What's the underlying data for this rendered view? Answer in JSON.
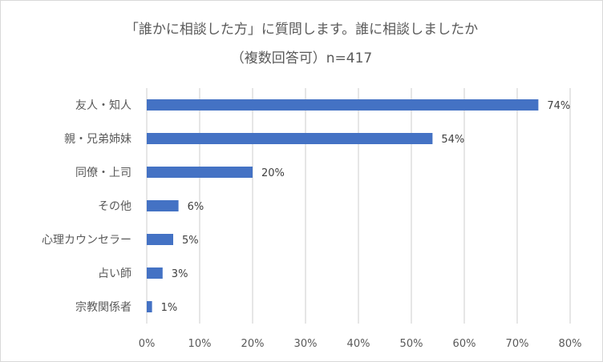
{
  "chart_data": {
    "type": "bar",
    "orientation": "horizontal",
    "title": "「誰かに相談した方」に質問します。誰に相談しましたか",
    "subtitle": "（複数回答可）n=417",
    "categories": [
      "友人・知人",
      "親・兄弟姉妹",
      "同僚・上司",
      "その他",
      "心理カウンセラー",
      "占い師",
      "宗教関係者"
    ],
    "values": [
      74,
      54,
      20,
      6,
      5,
      3,
      1
    ],
    "value_labels": [
      "74%",
      "54%",
      "20%",
      "6%",
      "5%",
      "3%",
      "1%"
    ],
    "x_ticks": [
      "0%",
      "10%",
      "20%",
      "30%",
      "40%",
      "50%",
      "60%",
      "70%",
      "80%"
    ],
    "xlim": [
      0,
      80
    ],
    "grid": true,
    "bar_color": "#4472c4",
    "grid_color": "#d9d9d9"
  }
}
